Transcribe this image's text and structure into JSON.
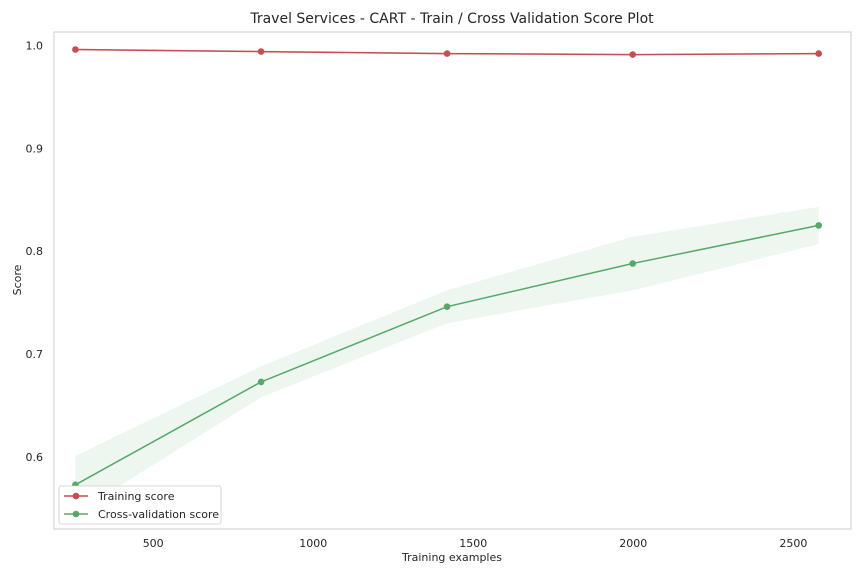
{
  "chart_data": {
    "type": "line",
    "title": "Travel Services - CART - Train / Cross Validation Score Plot",
    "xlabel": "Training examples",
    "ylabel": "Score",
    "xlim": [
      190,
      2680
    ],
    "ylim": [
      0.53,
      1.013
    ],
    "x_ticks": [
      500,
      1000,
      1500,
      2000,
      2500
    ],
    "x_tick_labels": [
      "500",
      "1000",
      "1500",
      "2000",
      "2500"
    ],
    "y_ticks": [
      0.6,
      0.7,
      0.8,
      0.9,
      1.0
    ],
    "y_tick_labels": [
      "0.6",
      "0.7",
      "0.8",
      "0.9",
      "1.0"
    ],
    "grid": false,
    "legend_position": "lower-left",
    "x": [
      257,
      837,
      1418,
      1998,
      2579
    ],
    "series": [
      {
        "name": "Training score",
        "color": "#c44e52",
        "values": [
          0.996,
          0.994,
          0.992,
          0.991,
          0.992
        ],
        "band_lower": [
          0.995,
          0.993,
          0.991,
          0.99,
          0.991
        ],
        "band_upper": [
          0.997,
          0.995,
          0.993,
          0.992,
          0.993
        ]
      },
      {
        "name": "Cross-validation score",
        "color": "#55a868",
        "values": [
          0.573,
          0.673,
          0.746,
          0.788,
          0.825
        ],
        "band_lower": [
          0.545,
          0.658,
          0.73,
          0.762,
          0.807
        ],
        "band_upper": [
          0.601,
          0.688,
          0.762,
          0.814,
          0.843
        ]
      }
    ]
  }
}
